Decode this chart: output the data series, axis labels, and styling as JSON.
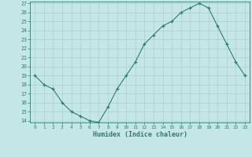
{
  "title": "",
  "xlabel": "Humidex (Indice chaleur)",
  "x": [
    0,
    1,
    2,
    3,
    4,
    5,
    6,
    7,
    8,
    9,
    10,
    11,
    12,
    13,
    14,
    15,
    16,
    17,
    18,
    19,
    20,
    21,
    22,
    23
  ],
  "y_data": [
    19,
    18,
    17.5,
    16,
    15,
    14.5,
    14,
    13.8,
    15.5,
    17.5,
    19,
    20.5,
    22.5,
    23.5,
    24.5,
    25,
    26,
    26.5,
    27,
    26.5,
    24.5,
    22.5,
    20.5,
    19
  ],
  "ylim": [
    13.8,
    27.2
  ],
  "xlim": [
    -0.5,
    23.5
  ],
  "line_color": "#2d7d6e",
  "marker": "+",
  "bg_color": "#c5e6e6",
  "grid_color": "#aacece",
  "tick_color": "#2d7d6e",
  "label_color": "#2d7d6e",
  "yticks": [
    14,
    15,
    16,
    17,
    18,
    19,
    20,
    21,
    22,
    23,
    24,
    25,
    26,
    27
  ],
  "xticks": [
    0,
    1,
    2,
    3,
    4,
    5,
    6,
    7,
    8,
    9,
    10,
    11,
    12,
    13,
    14,
    15,
    16,
    17,
    18,
    19,
    20,
    21,
    22,
    23
  ]
}
